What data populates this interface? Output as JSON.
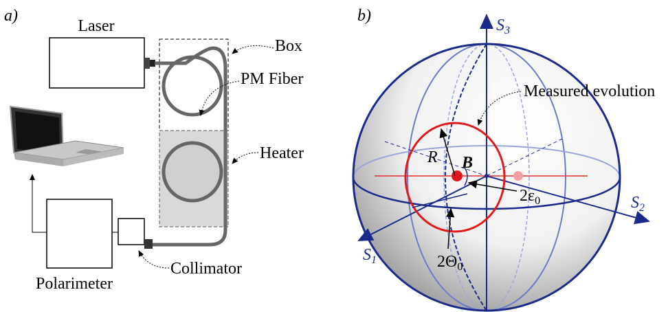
{
  "panel_a": {
    "label": "a)",
    "laser": "Laser",
    "box": "Box",
    "fiber": "PM Fiber",
    "heater": "Heater",
    "collimator": "Collimator",
    "polarimeter": "Polarimeter"
  },
  "panel_b": {
    "label": "b)",
    "s3": {
      "main": "S",
      "sub": "3"
    },
    "s2": {
      "main": "S",
      "sub": "2"
    },
    "s1": {
      "main": "S",
      "sub": "1"
    },
    "measured": "Measured evolution",
    "radius": "R",
    "point": "B",
    "epsilon": {
      "main": "2ε",
      "sub": "0"
    },
    "theta": {
      "main": "2Θ",
      "sub": "0"
    }
  }
}
